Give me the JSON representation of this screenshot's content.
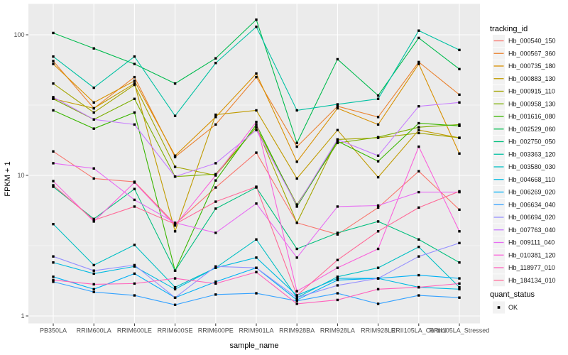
{
  "figure": {
    "bg": "#FFFFFF",
    "panel_bg": "#EBEBEB",
    "grid_color": "#FFFFFF",
    "tick_color": "#333333",
    "tick_label_color": "#4D4D4D",
    "point_color": "#000000",
    "legend_key_bg": "#F2F2F2"
  },
  "chart_data": {
    "type": "line",
    "title": "",
    "xlabel": "sample_name",
    "ylabel": "FPKM + 1",
    "y_scale": "log10",
    "y_ticks": [
      "1",
      "10",
      "100"
    ],
    "y_tick_values": [
      1,
      10,
      100
    ],
    "ylim": [
      0.88,
      165
    ],
    "grid": true,
    "legend_position": "right",
    "legend_title": "tracking_id",
    "point_shape": "square",
    "categories": [
      "PB350LA",
      "RRIM600LA",
      "RRIM600LE",
      "RRIM600SE",
      "RRIM600PE",
      "RRIM901LA",
      "RRIM928BA",
      "RRIM928LA",
      "RRIM928LE",
      "RRII105LA_Control",
      "RRII105LA_Stressed"
    ],
    "series": [
      {
        "name": "Hb_000540_150",
        "color": "#F8766D",
        "values": [
          14.8,
          9.5,
          9.0,
          4.5,
          8.2,
          14.5,
          4.6,
          3.8,
          5.9,
          10.7,
          5.7
        ]
      },
      {
        "name": "Hb_000567_360",
        "color": "#EA8331",
        "values": [
          65,
          30,
          50,
          13.5,
          23,
          50,
          16,
          31,
          26,
          64,
          37.5
        ]
      },
      {
        "name": "Hb_000735_180",
        "color": "#D89000",
        "values": [
          62,
          33,
          47,
          13.8,
          26,
          53,
          12.5,
          30,
          23,
          62,
          14.3
        ]
      },
      {
        "name": "Hb_000883_130",
        "color": "#C09B00",
        "values": [
          35,
          30,
          45,
          4.0,
          27,
          29,
          9.5,
          21,
          9.7,
          21,
          18.5
        ]
      },
      {
        "name": "Hb_000915_110",
        "color": "#A3A500",
        "values": [
          45,
          28,
          44,
          11.5,
          10,
          22,
          4.6,
          18,
          18.5,
          20,
          18.5
        ]
      },
      {
        "name": "Hb_000958_130",
        "color": "#7CAE00",
        "values": [
          35,
          25,
          35,
          9.8,
          10.2,
          22,
          6.2,
          17,
          18.7,
          22,
          23
        ]
      },
      {
        "name": "Hb_001616_080",
        "color": "#39B600",
        "values": [
          29,
          21.5,
          28,
          2.1,
          9.2,
          23,
          6.0,
          17.5,
          12.6,
          23.5,
          22.5
        ]
      },
      {
        "name": "Hb_002529_060",
        "color": "#00BB4E",
        "values": [
          103,
          80,
          62,
          45,
          68,
          128,
          17,
          67,
          37,
          95,
          57
        ]
      },
      {
        "name": "Hb_002750_050",
        "color": "#00BF7D",
        "values": [
          8.3,
          4.9,
          8.0,
          2.1,
          5.8,
          8.2,
          3.0,
          3.9,
          4.7,
          3.5,
          2.4
        ]
      },
      {
        "name": "Hb_003363_120",
        "color": "#00C1A3",
        "values": [
          70,
          42,
          70,
          26.5,
          63,
          114,
          29,
          32,
          35,
          107,
          78
        ]
      },
      {
        "name": "Hb_003580_030",
        "color": "#00BFC4",
        "values": [
          4.5,
          2.3,
          3.2,
          1.6,
          2.2,
          3.5,
          1.35,
          1.9,
          2.2,
          3.1,
          1.6
        ]
      },
      {
        "name": "Hb_004668_110",
        "color": "#00BAE0",
        "values": [
          2.4,
          2.0,
          2.25,
          1.55,
          2.2,
          2.6,
          1.4,
          1.85,
          1.85,
          1.6,
          1.55
        ]
      },
      {
        "name": "Hb_006269_020",
        "color": "#00B0F6",
        "values": [
          1.9,
          1.55,
          2.0,
          1.35,
          1.75,
          2.2,
          1.3,
          1.8,
          1.85,
          1.95,
          1.85
        ]
      },
      {
        "name": "Hb_006634_040",
        "color": "#35A2FF",
        "values": [
          1.75,
          1.48,
          1.4,
          1.2,
          1.42,
          1.45,
          1.28,
          1.45,
          1.22,
          1.4,
          1.35
        ]
      },
      {
        "name": "Hb_006694_020",
        "color": "#9590FF",
        "values": [
          2.65,
          2.1,
          2.3,
          1.35,
          2.25,
          2.2,
          1.35,
          1.65,
          1.85,
          2.65,
          3.3
        ]
      },
      {
        "name": "Hb_007763_040",
        "color": "#C77CFF",
        "values": [
          36,
          25,
          23,
          9.8,
          12.2,
          21,
          6.1,
          18,
          13.8,
          31,
          33
        ]
      },
      {
        "name": "Hb_009111_040",
        "color": "#E76BF3",
        "values": [
          12.2,
          11.2,
          6.7,
          4.6,
          3.9,
          6.3,
          2.6,
          6.0,
          6.1,
          7.6,
          7.6
        ]
      },
      {
        "name": "Hb_010381_120",
        "color": "#FA62DB",
        "values": [
          9.1,
          4.7,
          8.9,
          4.4,
          10.0,
          24,
          1.5,
          2.2,
          3.0,
          16,
          4.0
        ]
      },
      {
        "name": "Hb_118977_010",
        "color": "#FF62BC",
        "values": [
          1.8,
          1.68,
          1.7,
          1.85,
          1.7,
          2.05,
          1.22,
          1.3,
          1.55,
          1.6,
          1.7
        ]
      },
      {
        "name": "Hb_184134_010",
        "color": "#FF6A98",
        "values": [
          8.5,
          4.8,
          6.0,
          4.5,
          6.5,
          8.3,
          1.4,
          2.5,
          4.0,
          5.9,
          7.7
        ]
      }
    ],
    "quant_status": {
      "title": "quant_status",
      "items": [
        {
          "label": "OK",
          "shape": "square",
          "color": "#000000"
        }
      ]
    }
  }
}
